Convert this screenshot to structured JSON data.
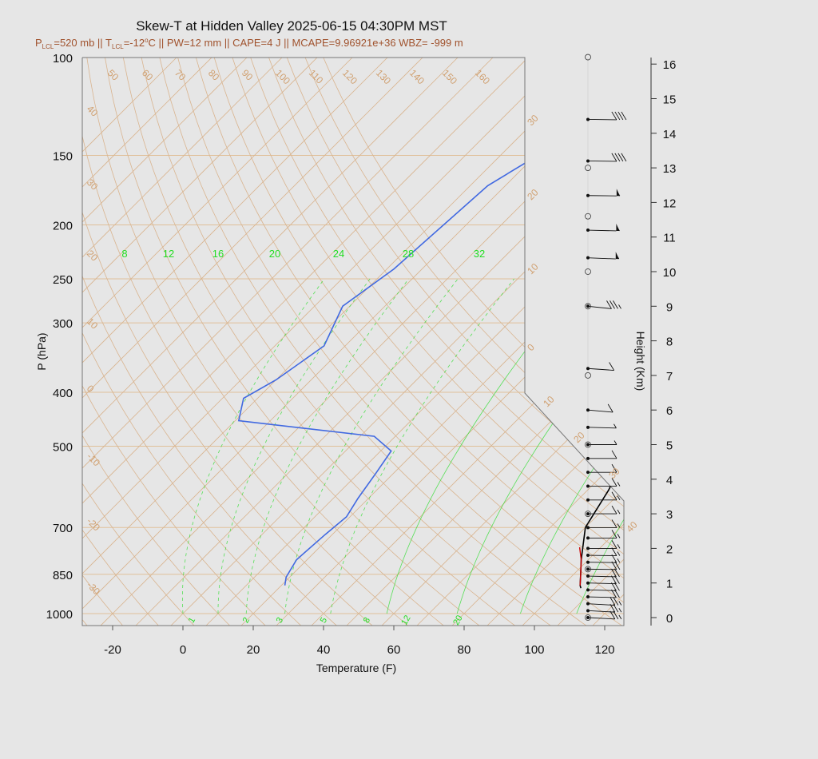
{
  "header": {
    "title": "Skew-T at Hidden Valley 2025-06-15 04:30PM MST",
    "subtitle": "P_LCL=520 mb || T_LCL=-12°C || PW=12 mm || CAPE=4 J || MCAPE=9.96921e+36 WBZ= -999 m",
    "sub_p": "P",
    "sub_lcl": "LCL",
    "sub_p_val": "=520 mb || T",
    "sub_t_val": "=-12",
    "sub_deg": "o",
    "sub_rest": "C || PW=12 mm || CAPE=4 J || MCAPE=9.96921e+36 WBZ= -999 m"
  },
  "colors": {
    "background": "#e6e6e6",
    "isotherm": "#d9b48f",
    "isobar": "#e0c09a",
    "dry_adiabat": "#d9b48f",
    "mixing_ratio": "#33dd33",
    "temperature": "#000000",
    "dewpoint": "#4169e1",
    "parcel": "#cc0000",
    "wind": "#111111"
  },
  "chart_data": {
    "type": "skew-t",
    "title": "Skew-T at Hidden Valley 2025-06-15 04:30PM MST",
    "xlabel": "Temperature (F)",
    "ylabel": "P (hPa)",
    "y2label": "Height (Km)",
    "x_ticks": [
      "-20",
      "0",
      "20",
      "40",
      "60",
      "80",
      "100",
      "120"
    ],
    "x_tick_values": [
      -20,
      0,
      20,
      40,
      60,
      80,
      100,
      120
    ],
    "p_ticks": [
      "100",
      "150",
      "200",
      "250",
      "300",
      "400",
      "500",
      "700",
      "850",
      "1000"
    ],
    "p_tick_values": [
      100,
      150,
      200,
      250,
      300,
      400,
      500,
      700,
      850,
      1000
    ],
    "height_ticks": [
      "0",
      "1",
      "2",
      "3",
      "4",
      "5",
      "6",
      "7",
      "8",
      "9",
      "10",
      "11",
      "12",
      "13",
      "14",
      "15",
      "16"
    ],
    "height_tick_values": [
      0,
      1,
      2,
      3,
      4,
      5,
      6,
      7,
      8,
      9,
      10,
      11,
      12,
      13,
      14,
      15,
      16
    ],
    "isotherm_labels_top": [
      "50",
      "60",
      "70",
      "80",
      "90",
      "100",
      "110",
      "120",
      "130",
      "140",
      "150",
      "160"
    ],
    "isotherm_labels_left": [
      "40",
      "30",
      "20",
      "10",
      "0",
      "-10",
      "-20",
      "-30"
    ],
    "isotherm_labels_right": [
      "30",
      "20",
      "10",
      "0",
      "10",
      "20",
      "30",
      "40"
    ],
    "mixing_ratio_labels_top": [
      "8",
      "12",
      "16",
      "20",
      "24",
      "28",
      "32"
    ],
    "mixing_ratio_labels_bottom": [
      "1",
      "2",
      "3",
      "5",
      "8",
      "12",
      "20"
    ],
    "temperature_profile": {
      "name": "Temperature",
      "points": [
        [
          100,
          86.0
        ],
        [
          130,
          74.0
        ],
        [
          170,
          78.0
        ],
        [
          240,
          82.0
        ],
        [
          300,
          85.0
        ],
        [
          330,
          82.0
        ],
        [
          380,
          76.0
        ],
        [
          450,
          77.0
        ],
        [
          520,
          81.0
        ],
        [
          600,
          86.0
        ],
        [
          700,
          90.0
        ],
        [
          800,
          98.0
        ],
        [
          850,
          102.0
        ],
        [
          890,
          105.0
        ],
        [
          900,
          106.0
        ]
      ]
    },
    "dewpoint_profile": {
      "name": "Dewpoint",
      "points": [
        [
          100,
          1.0
        ],
        [
          130,
          -23.0
        ],
        [
          170,
          -35.0
        ],
        [
          240,
          -38.0
        ],
        [
          280,
          -42.0
        ],
        [
          330,
          -36.0
        ],
        [
          380,
          -40.0
        ],
        [
          410,
          -44.0
        ],
        [
          450,
          -39.0
        ],
        [
          480,
          4.0
        ],
        [
          510,
          13.0
        ],
        [
          560,
          15.0
        ],
        [
          620,
          17.0
        ],
        [
          670,
          19.0
        ],
        [
          720,
          18.0
        ],
        [
          800,
          17.0
        ],
        [
          860,
          19.0
        ],
        [
          890,
          21.0
        ]
      ]
    },
    "parcel_profile": {
      "name": "Parcel",
      "points": [
        [
          760,
          94.0
        ],
        [
          800,
          98.0
        ],
        [
          850,
          102.0
        ],
        [
          890,
          105.0
        ]
      ]
    },
    "wind_barb_heights_km": [
      0.0,
      0.2,
      0.4,
      0.6,
      0.8,
      1.0,
      1.2,
      1.4,
      1.6,
      1.8,
      2.0,
      2.3,
      2.6,
      3.0,
      3.4,
      3.8,
      4.2,
      4.6,
      5.0,
      5.5,
      6.0,
      7.2,
      9.0,
      10.4,
      11.2,
      12.2,
      13.2,
      14.4
    ],
    "wind_barb_speeds_kt": [
      25,
      25,
      25,
      20,
      20,
      20,
      20,
      20,
      15,
      15,
      15,
      15,
      15,
      15,
      15,
      15,
      10,
      10,
      5,
      5,
      10,
      10,
      35,
      55,
      55,
      55,
      40,
      40
    ],
    "wind_barb_dirs_deg": [
      250,
      250,
      250,
      260,
      260,
      260,
      260,
      265,
      265,
      265,
      270,
      270,
      270,
      270,
      270,
      270,
      270,
      270,
      270,
      260,
      240,
      245,
      235,
      255,
      260,
      265,
      265,
      265
    ]
  }
}
